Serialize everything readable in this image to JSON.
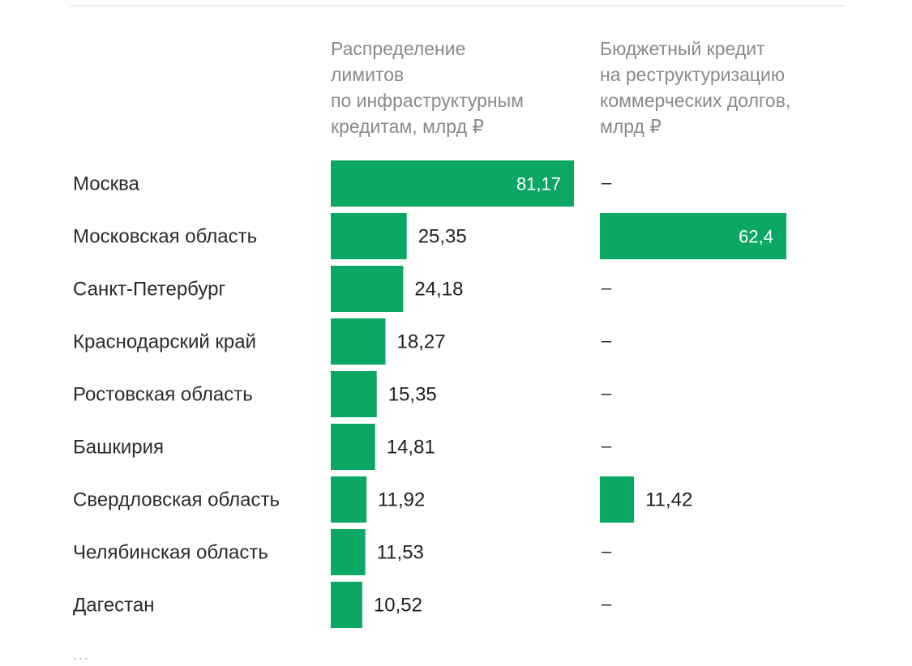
{
  "chart_data": {
    "type": "bar",
    "categories": [
      "Москва",
      "Московская область",
      "Санкт-Петербург",
      "Краснодарский край",
      "Ростовская область",
      "Башкирия",
      "Свердловская область",
      "Челябинская область",
      "Дагестан"
    ],
    "series": [
      {
        "name": "Распределение\nлимитов\nпо инфраструктурным\nкредитам, млрд ₽",
        "values": [
          81.17,
          25.35,
          24.18,
          18.27,
          15.35,
          14.81,
          11.92,
          11.53,
          10.52
        ],
        "labels": [
          "81,17",
          "25,35",
          "24,18",
          "18,27",
          "15,35",
          "14,81",
          "11,92",
          "11,53",
          "10,52"
        ]
      },
      {
        "name": "Бюджетный кредит\nна реструктуризацию\nкоммерческих долгов,\nмлрд ₽",
        "values": [
          null,
          62.4,
          null,
          null,
          null,
          null,
          11.42,
          null,
          null
        ],
        "labels": [
          "–",
          "62,4",
          "–",
          "–",
          "–",
          "–",
          "11,42",
          "–",
          "–"
        ]
      }
    ],
    "colors": {
      "bar": "#0ba864",
      "text": "#2b2b2b",
      "header": "#8a8a8a"
    },
    "footer": "..."
  }
}
